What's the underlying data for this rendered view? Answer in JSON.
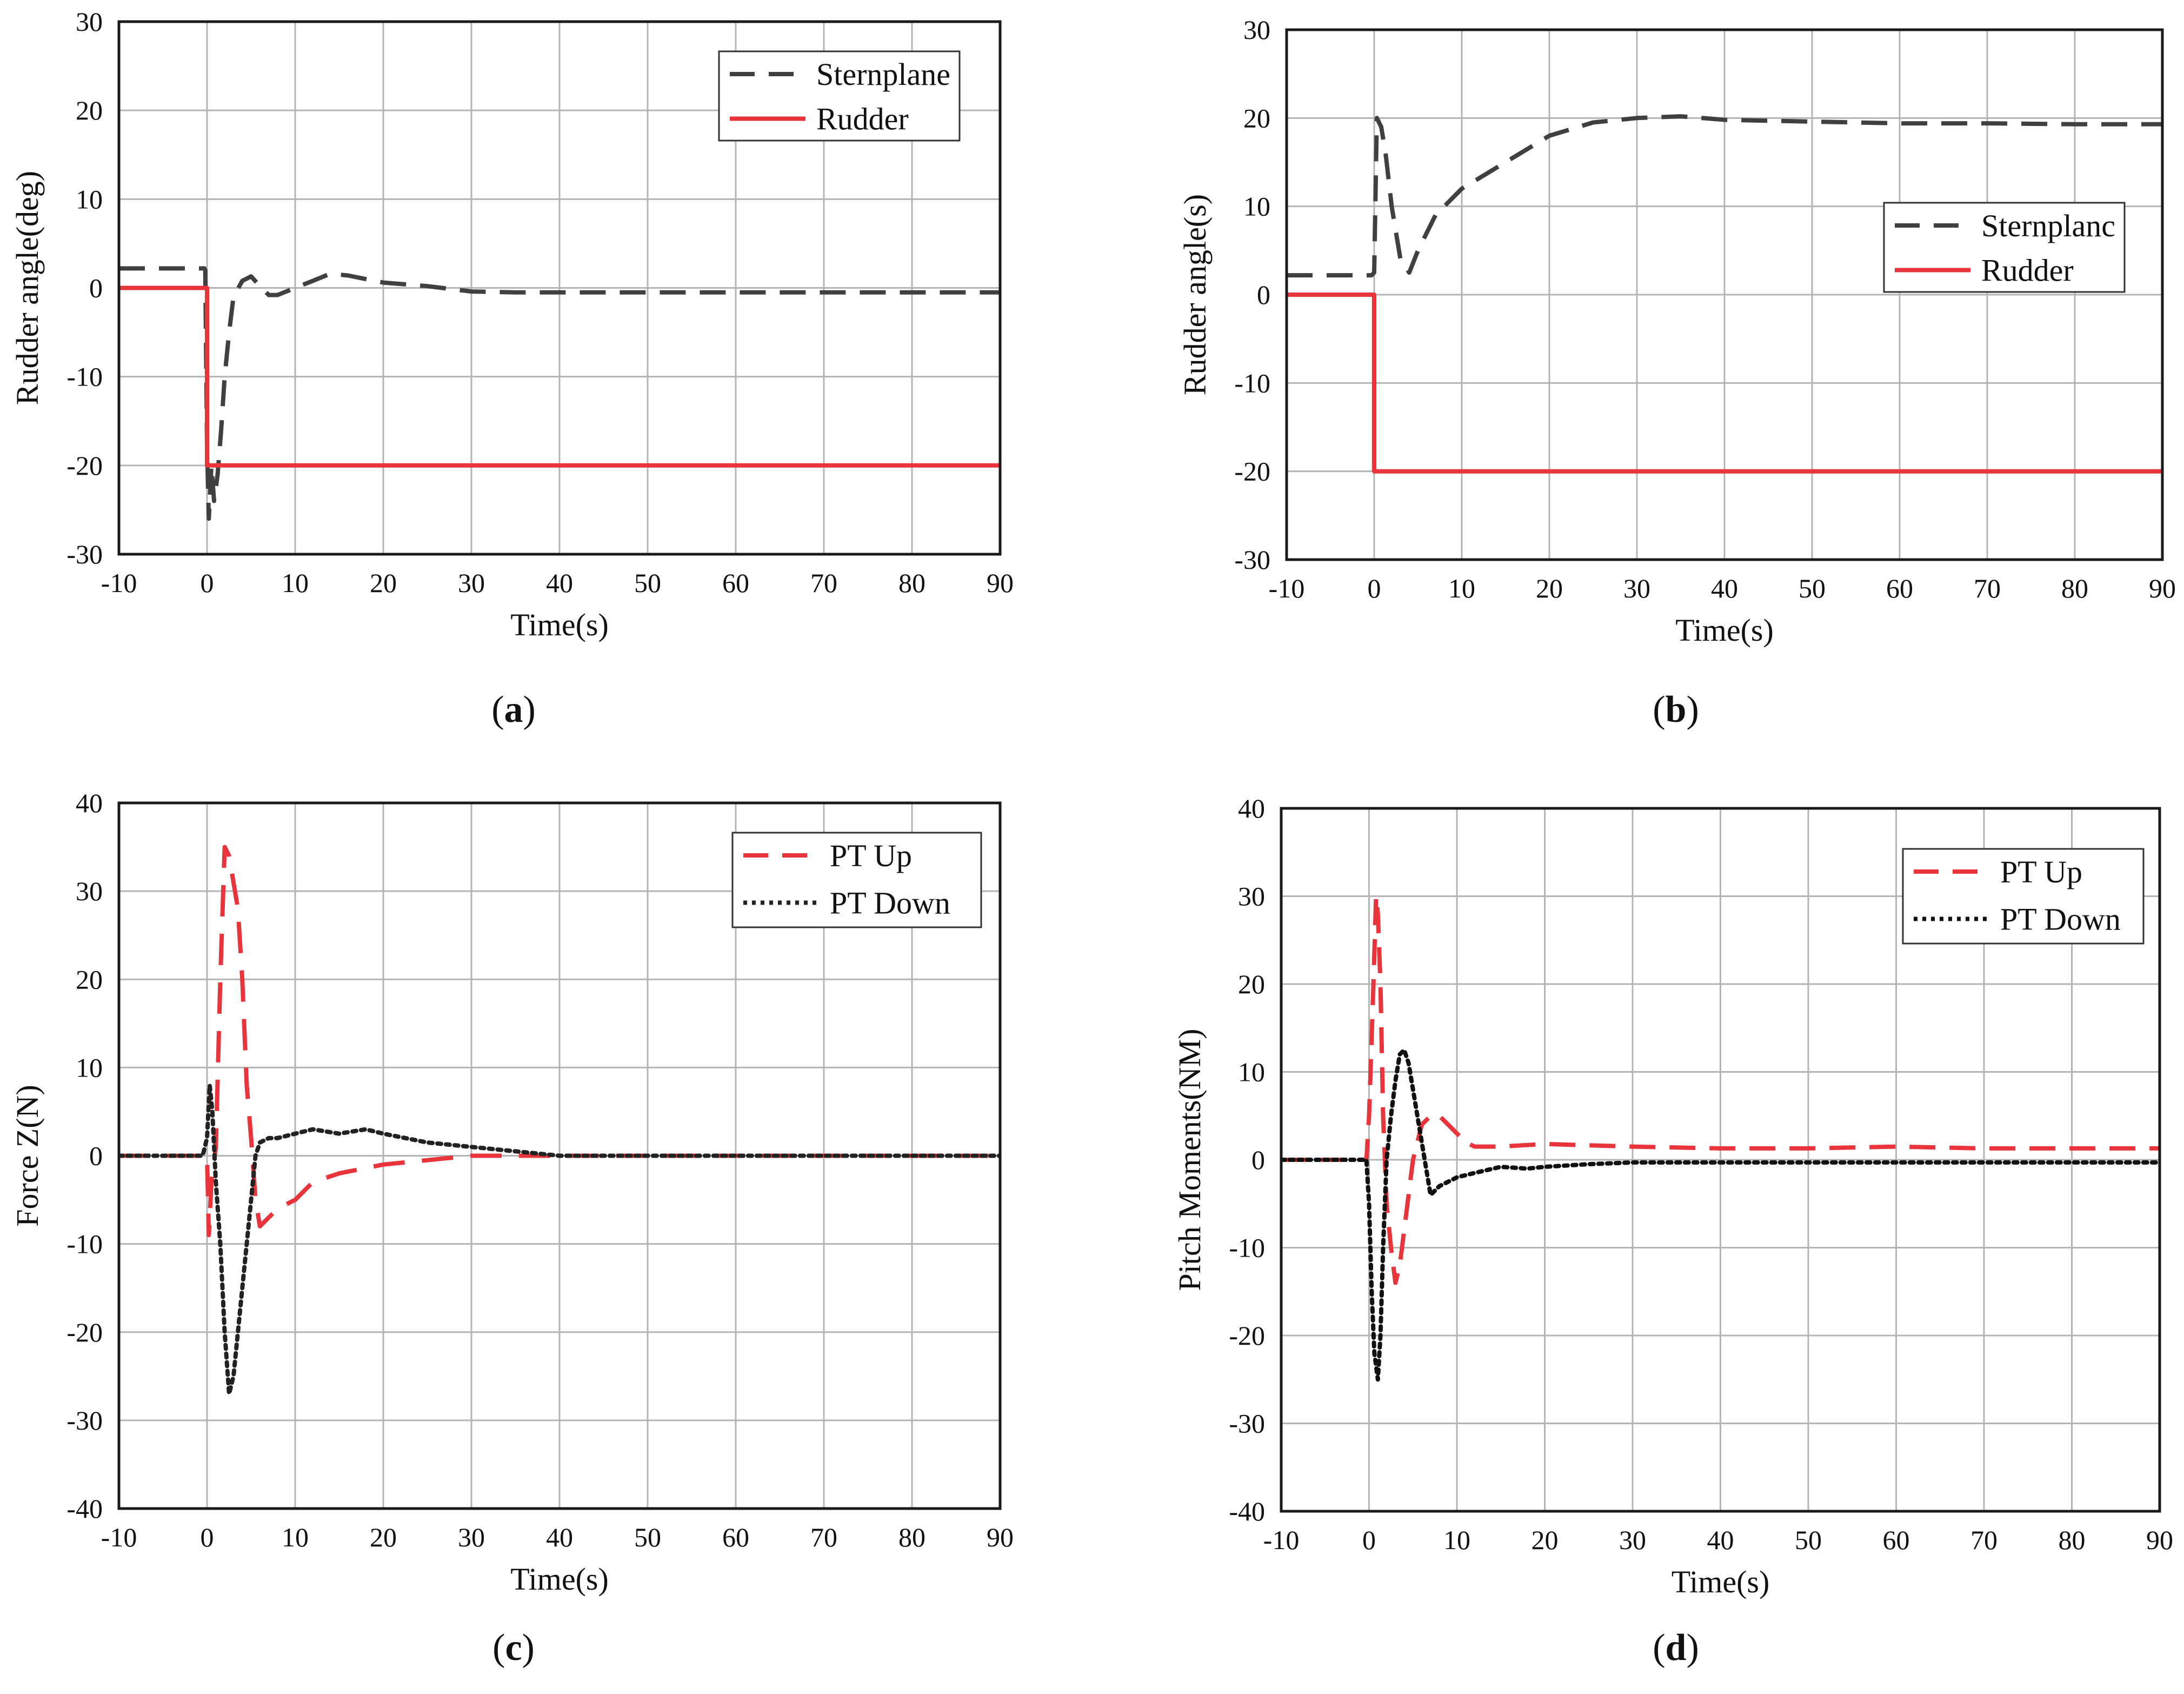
{
  "figure": {
    "panels": [
      "a",
      "b",
      "c",
      "d"
    ]
  },
  "chart_data": [
    {
      "id": "a",
      "type": "line",
      "caption_letter": "a",
      "xlabel": "Time(s)",
      "ylabel": "Rudder angle(deg)",
      "xlim": [
        -10,
        90
      ],
      "ylim": [
        -30,
        30
      ],
      "xticks": [
        -10,
        0,
        10,
        20,
        30,
        40,
        50,
        60,
        70,
        80,
        90
      ],
      "yticks": [
        -30,
        -20,
        -10,
        0,
        10,
        20,
        30
      ],
      "grid": true,
      "legend_position": "top-right",
      "series": [
        {
          "name": "Sternplane",
          "color": "#404040",
          "style": "dashed",
          "x": [
            -10,
            -0.3,
            -0.2,
            0,
            0.2,
            0.5,
            0.8,
            1.2,
            1.6,
            2,
            2.5,
            3,
            4,
            5,
            6,
            7,
            8,
            10,
            12,
            14,
            16,
            18,
            20,
            25,
            30,
            35,
            40,
            50,
            60,
            70,
            80,
            90
          ],
          "y": [
            2.2,
            2.2,
            2,
            -18,
            -26,
            -20,
            -24,
            -21,
            -16,
            -10,
            -5,
            -1,
            0.8,
            1.3,
            0.2,
            -0.8,
            -0.8,
            0,
            0.8,
            1.6,
            1.4,
            1,
            0.6,
            0.2,
            -0.4,
            -0.5,
            -0.5,
            -0.5,
            -0.5,
            -0.5,
            -0.5,
            -0.5
          ]
        },
        {
          "name": "Rudder",
          "color": "#e8343a",
          "style": "solid",
          "x": [
            -10,
            0,
            0,
            90
          ],
          "y": [
            0,
            0,
            -20,
            -20
          ]
        }
      ]
    },
    {
      "id": "b",
      "type": "line",
      "caption_letter": "b",
      "xlabel": "Time(s)",
      "ylabel": "Rudder angle(s)",
      "xlim": [
        -10,
        90
      ],
      "ylim": [
        -30,
        30
      ],
      "xticks": [
        -10,
        0,
        10,
        20,
        30,
        40,
        50,
        60,
        70,
        80,
        90
      ],
      "yticks": [
        -30,
        -20,
        -10,
        0,
        10,
        20,
        30
      ],
      "grid": true,
      "legend_position": "upper-right",
      "series": [
        {
          "name": "Sternplanc",
          "color": "#404040",
          "style": "dashed",
          "x": [
            -10,
            -0.3,
            0,
            0.3,
            0.8,
            1.3,
            2,
            3,
            4,
            5,
            7,
            10,
            15,
            20,
            25,
            30,
            35,
            40,
            50,
            60,
            70,
            80,
            90
          ],
          "y": [
            2.2,
            2.2,
            2.5,
            20,
            19,
            16,
            10,
            4,
            2.5,
            5,
            9,
            12,
            15,
            18,
            19.5,
            20,
            20.2,
            19.8,
            19.6,
            19.4,
            19.4,
            19.3,
            19.3
          ]
        },
        {
          "name": "Rudder",
          "color": "#e8343a",
          "style": "solid",
          "x": [
            -10,
            0,
            0,
            90
          ],
          "y": [
            0,
            0,
            -20,
            -20
          ]
        }
      ]
    },
    {
      "id": "c",
      "type": "line",
      "caption_letter": "c",
      "xlabel": "Time(s)",
      "ylabel": "Force Z(N)",
      "xlim": [
        -10,
        90
      ],
      "ylim": [
        -40,
        40
      ],
      "xticks": [
        -10,
        0,
        10,
        20,
        30,
        40,
        50,
        60,
        70,
        80,
        90
      ],
      "yticks": [
        -40,
        -30,
        -20,
        -10,
        0,
        10,
        20,
        30,
        40
      ],
      "grid": true,
      "legend_position": "top-right",
      "series": [
        {
          "name": "PT Up",
          "color": "#e8343a",
          "style": "long-dashed",
          "x": [
            -10,
            -0.5,
            0,
            0.2,
            0.5,
            1,
            1.5,
            2,
            2.5,
            3,
            3.5,
            4,
            4.5,
            5,
            5.5,
            6,
            7,
            8,
            10,
            12,
            15,
            20,
            25,
            30,
            35,
            40,
            50,
            60,
            70,
            80,
            90
          ],
          "y": [
            0,
            0,
            0,
            -9,
            -3,
            1,
            20,
            35,
            34,
            31,
            28,
            20,
            8,
            2,
            -5,
            -8,
            -7,
            -6,
            -5,
            -3,
            -2,
            -1,
            -0.5,
            0,
            0,
            0,
            0,
            0,
            0,
            0,
            0
          ]
        },
        {
          "name": "PT Down",
          "color": "#222222",
          "style": "dotted",
          "x": [
            -10,
            -0.5,
            0,
            0.3,
            0.6,
            1,
            1.5,
            2,
            2.5,
            3,
            3.5,
            4,
            4.5,
            5,
            5.5,
            6,
            7,
            8,
            10,
            12,
            15,
            18,
            20,
            25,
            30,
            35,
            40,
            50,
            60,
            70,
            80,
            90
          ],
          "y": [
            0,
            0,
            2,
            8,
            5,
            -3,
            -10,
            -20,
            -27,
            -25,
            -20,
            -15,
            -10,
            -5,
            0,
            1.5,
            2,
            2,
            2.5,
            3,
            2.5,
            3,
            2.5,
            1.5,
            1,
            0.5,
            0,
            0,
            0,
            0,
            0,
            0
          ]
        }
      ]
    },
    {
      "id": "d",
      "type": "line",
      "caption_letter": "d",
      "xlabel": "Time(s)",
      "ylabel": "Pitch Moments(NM)",
      "xlim": [
        -10,
        90
      ],
      "ylim": [
        -40,
        40
      ],
      "xticks": [
        -10,
        0,
        10,
        20,
        30,
        40,
        50,
        60,
        70,
        80,
        90
      ],
      "yticks": [
        -40,
        -30,
        -20,
        -10,
        0,
        10,
        20,
        30,
        40
      ],
      "grid": true,
      "legend_position": "top-right",
      "series": [
        {
          "name": "PT Up",
          "color": "#e8343a",
          "style": "dashed",
          "x": [
            -10,
            -0.3,
            0,
            0.5,
            0.8,
            1,
            1.3,
            1.6,
            2,
            2.5,
            3,
            3.5,
            4,
            4.5,
            5,
            6,
            7,
            8,
            9,
            10,
            11,
            12,
            15,
            20,
            30,
            40,
            50,
            60,
            70,
            80,
            90
          ],
          "y": [
            0,
            0,
            5,
            20,
            30,
            28,
            20,
            5,
            -5,
            -10,
            -14,
            -12,
            -8,
            -4,
            0,
            4,
            5,
            5,
            4,
            3,
            2,
            1.5,
            1.5,
            1.8,
            1.5,
            1.3,
            1.3,
            1.5,
            1.3,
            1.3,
            1.3
          ]
        },
        {
          "name": "PT Down",
          "color": "#111111",
          "style": "dotted",
          "x": [
            -10,
            -0.3,
            0,
            0.3,
            0.6,
            1,
            1.3,
            1.6,
            2,
            2.5,
            3,
            3.5,
            4,
            4.5,
            5,
            6,
            7,
            8,
            10,
            12,
            15,
            18,
            20,
            25,
            30,
            40,
            50,
            60,
            70,
            80,
            90
          ],
          "y": [
            0,
            0,
            -5,
            -15,
            -22,
            -25,
            -20,
            -10,
            0,
            5,
            9,
            12,
            12.5,
            11,
            8,
            2,
            -4,
            -3,
            -2,
            -1.5,
            -0.8,
            -1,
            -0.8,
            -0.5,
            -0.3,
            -0.3,
            -0.3,
            -0.3,
            -0.3,
            -0.3,
            -0.3
          ]
        }
      ]
    }
  ]
}
